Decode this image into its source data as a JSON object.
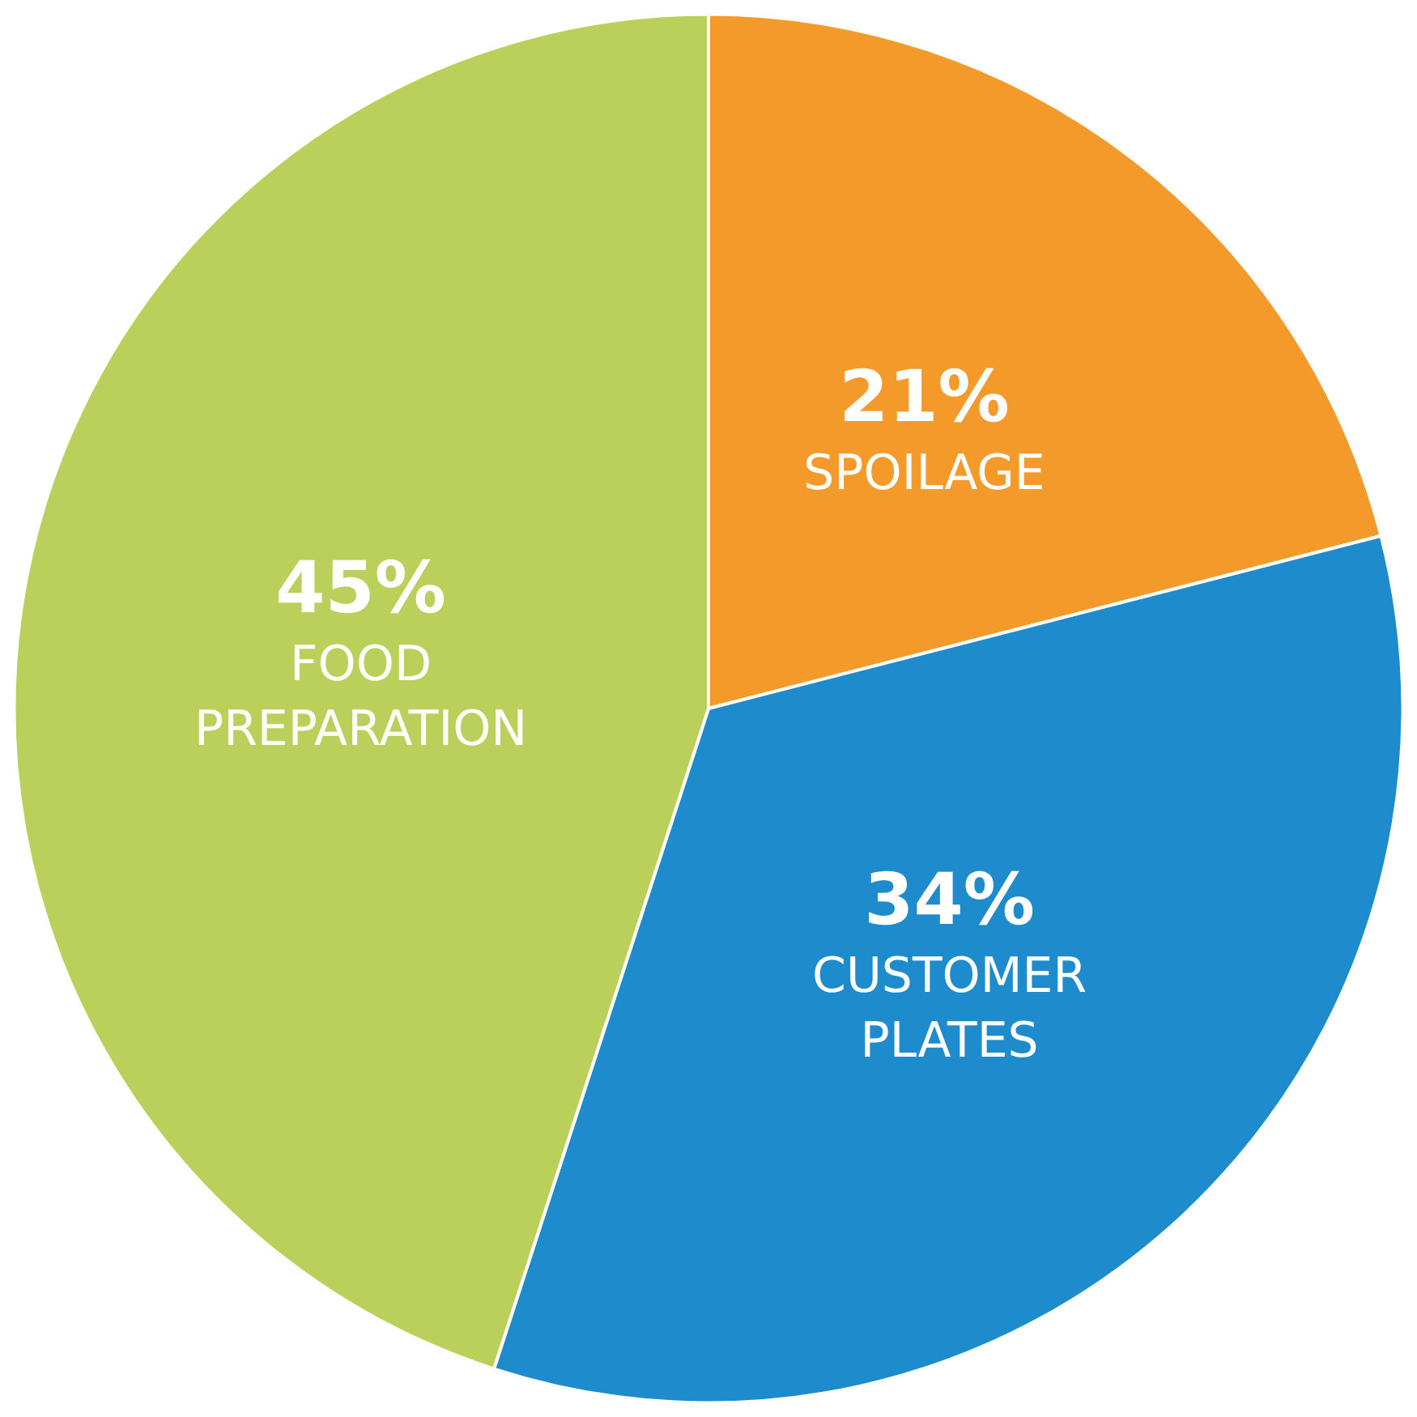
{
  "chart_data": {
    "type": "pie",
    "categories": [
      "SPOILAGE",
      "CUSTOMER PLATES",
      "FOOD PREPARATION"
    ],
    "values": [
      21,
      34,
      45
    ],
    "colors": [
      "#f39a2b",
      "#1e8ccc",
      "#bbd05a"
    ],
    "value_labels": [
      "21%",
      "34%",
      "45%"
    ],
    "legend": false
  }
}
